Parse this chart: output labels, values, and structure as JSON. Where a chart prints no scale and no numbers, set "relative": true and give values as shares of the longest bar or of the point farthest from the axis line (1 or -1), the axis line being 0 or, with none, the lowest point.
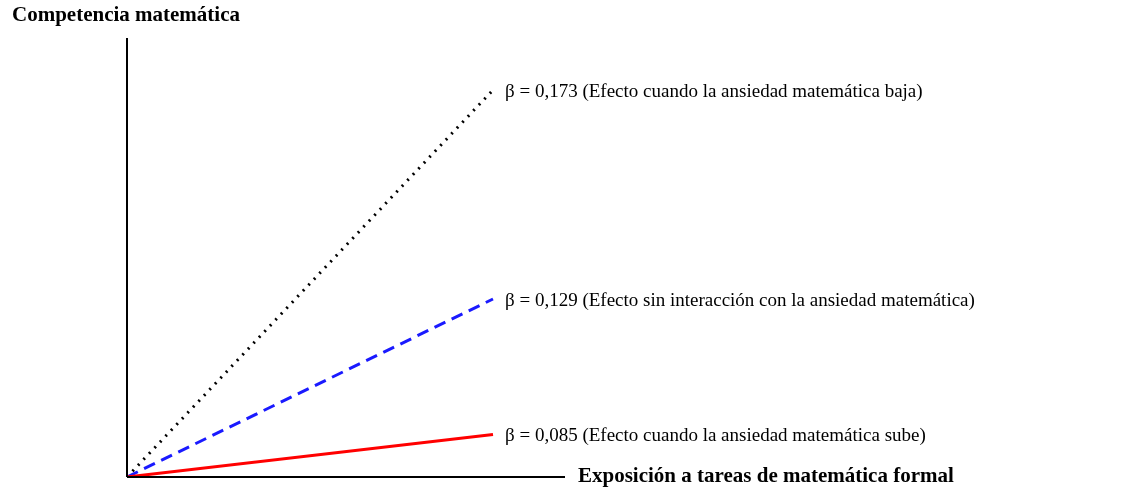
{
  "chart_data": {
    "type": "line",
    "relative": true,
    "xlabel": "Exposición a tareas de matemática formal",
    "ylabel": "Competencia matemática",
    "categories": [
      null,
      null
    ],
    "legend": false,
    "series": [
      {
        "name": "β = 0,173 (Efecto cuando la ansiedad matemática baja)",
        "color": "#000000",
        "line_style": "dotted",
        "values": [
          0,
          1
        ]
      },
      {
        "name": "β = 0,129 (Efecto sin interacción con la ansiedad matemática)",
        "color": "#1a1aff",
        "line_style": "dashed",
        "values": [
          0,
          0.46
        ]
      },
      {
        "name": "β = 0,085 (Efecto cuando la ansiedad matemática sube)",
        "color": "#ff0000",
        "line_style": "solid",
        "values": [
          0,
          0.11
        ]
      }
    ]
  }
}
